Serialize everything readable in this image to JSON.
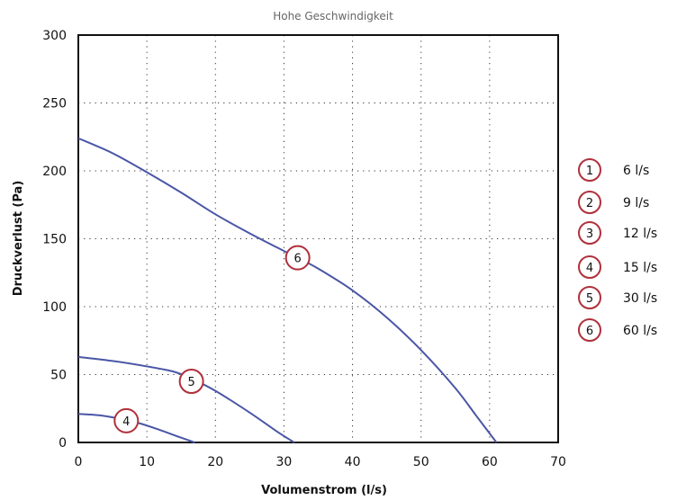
{
  "chart_data": {
    "type": "line",
    "title": "Hohe Geschwindigkeit",
    "xlabel": "Volumenstrom (l/s)",
    "ylabel": "Druckverlust (Pa)",
    "xlim": [
      0,
      70
    ],
    "ylim": [
      0,
      300
    ],
    "xticks": [
      "0",
      "10",
      "20",
      "30",
      "40",
      "50",
      "60",
      "70"
    ],
    "yticks": [
      "0",
      "50",
      "100",
      "150",
      "200",
      "250",
      "300"
    ],
    "grid": true,
    "legend_position": "right",
    "legend": [
      {
        "id": "1",
        "label": "6 l/s"
      },
      {
        "id": "2",
        "label": "9 l/s"
      },
      {
        "id": "3",
        "label": "12 l/s"
      },
      {
        "id": "4",
        "label": "15 l/s"
      },
      {
        "id": "5",
        "label": "30 l/s"
      },
      {
        "id": "6",
        "label": "60 l/s"
      }
    ],
    "series": [
      {
        "marker": "4",
        "points": [
          [
            0,
            21
          ],
          [
            3,
            20
          ],
          [
            6,
            17.5
          ],
          [
            9,
            14
          ],
          [
            12,
            9
          ],
          [
            15,
            3.5
          ],
          [
            17,
            0
          ]
        ],
        "marker_at": [
          7,
          16
        ]
      },
      {
        "marker": "5",
        "points": [
          [
            0,
            63
          ],
          [
            5,
            60
          ],
          [
            10,
            56
          ],
          [
            14,
            52
          ],
          [
            16.5,
            47
          ],
          [
            20,
            38
          ],
          [
            25,
            22
          ],
          [
            29,
            8
          ],
          [
            31.5,
            0
          ]
        ],
        "marker_at": [
          16.5,
          45
        ]
      },
      {
        "marker": "6",
        "points": [
          [
            0,
            224
          ],
          [
            5,
            213
          ],
          [
            10,
            199
          ],
          [
            15,
            184
          ],
          [
            20,
            168
          ],
          [
            25,
            154
          ],
          [
            30,
            141
          ],
          [
            32,
            136
          ],
          [
            35,
            128
          ],
          [
            40,
            112
          ],
          [
            45,
            92
          ],
          [
            50,
            68
          ],
          [
            55,
            40
          ],
          [
            58,
            20
          ],
          [
            61,
            0
          ]
        ],
        "marker_at": [
          32,
          136
        ]
      }
    ]
  },
  "colors": {
    "curve": "#4a56a6",
    "marker_ring": "#b0303b",
    "frame": "#111111"
  }
}
